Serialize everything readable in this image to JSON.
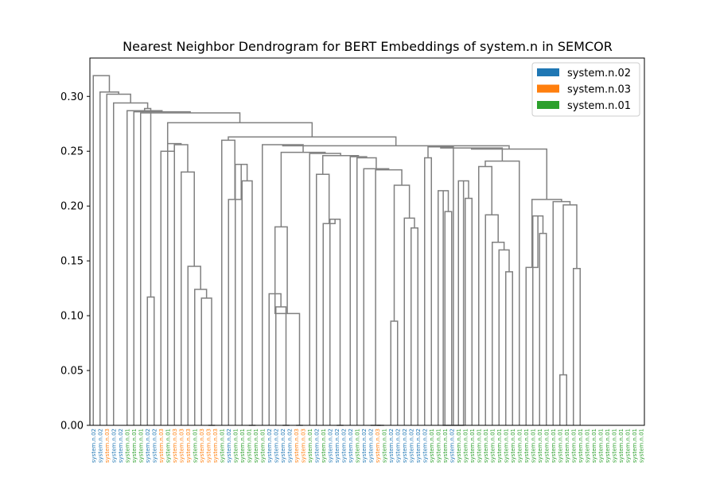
{
  "chart_data": {
    "type": "dendrogram",
    "title": "Nearest Neighbor Dendrogram for BERT Embeddings of system.n in SEMCOR",
    "xlabel": "",
    "ylabel": "",
    "ylim": [
      0,
      0.335
    ],
    "y_ticks": [
      {
        "value": 0.0,
        "label": "0.00"
      },
      {
        "value": 0.05,
        "label": "0.05"
      },
      {
        "value": 0.1,
        "label": "0.10"
      },
      {
        "value": 0.15,
        "label": "0.15"
      },
      {
        "value": 0.2,
        "label": "0.20"
      },
      {
        "value": 0.25,
        "label": "0.25"
      },
      {
        "value": 0.3,
        "label": "0.30"
      }
    ],
    "grid": false,
    "legend_position": "top-right",
    "legend": [
      {
        "label": "system.n.02",
        "color": "#1f77b4"
      },
      {
        "label": "system.n.03",
        "color": "#ff7f0e"
      },
      {
        "label": "system.n.01",
        "color": "#2ca02c"
      }
    ],
    "link_color": "#808080",
    "leaves": [
      "system.n.02",
      "system.n.02",
      "system.n.03",
      "system.n.02",
      "system.n.02",
      "system.n.01",
      "system.n.01",
      "system.n.01",
      "system.n.02",
      "system.n.02",
      "system.n.03",
      "system.n.01",
      "system.n.03",
      "system.n.03",
      "system.n.03",
      "system.n.01",
      "system.n.03",
      "system.n.03",
      "system.n.03",
      "system.n.01",
      "system.n.02",
      "system.n.01",
      "system.n.01",
      "system.n.01",
      "system.n.01",
      "system.n.01",
      "system.n.02",
      "system.n.02",
      "system.n.02",
      "system.n.02",
      "system.n.03",
      "system.n.03",
      "system.n.01",
      "system.n.02",
      "system.n.01",
      "system.n.02",
      "system.n.02",
      "system.n.02",
      "system.n.02",
      "system.n.01",
      "system.n.02",
      "system.n.02",
      "system.n.03",
      "system.n.01",
      "system.n.02",
      "system.n.02",
      "system.n.02",
      "system.n.02",
      "system.n.02",
      "system.n.02",
      "system.n.01",
      "system.n.01",
      "system.n.01",
      "system.n.02",
      "system.n.01",
      "system.n.01",
      "system.n.01",
      "system.n.01",
      "system.n.01",
      "system.n.01",
      "system.n.01",
      "system.n.01",
      "system.n.01",
      "system.n.01",
      "system.n.01",
      "system.n.01",
      "system.n.01",
      "system.n.01",
      "system.n.01",
      "system.n.01",
      "system.n.01",
      "system.n.01",
      "system.n.01",
      "system.n.01",
      "system.n.01",
      "system.n.01",
      "system.n.01",
      "system.n.01",
      "system.n.01",
      "system.n.01",
      "system.n.01",
      "system.n.01"
    ],
    "merges": [
      {
        "id": "m1",
        "a": 8,
        "b": 9,
        "h": 0.117
      },
      {
        "id": "m2",
        "a": 17,
        "b": 18,
        "h": 0.0
      },
      {
        "id": "m3",
        "a": 16,
        "b": "m2",
        "h": 0.116
      },
      {
        "id": "m4",
        "a": 15,
        "b": "m3",
        "h": 0.124
      },
      {
        "id": "m5",
        "a": 14,
        "b": "m4",
        "h": 0.145
      },
      {
        "id": "m6",
        "a": 13,
        "b": "m5",
        "h": 0.231
      },
      {
        "id": "m7",
        "a": 12,
        "b": "m6",
        "h": 0.256
      },
      {
        "id": "m8",
        "a": 11,
        "b": "m7",
        "h": 0.257
      },
      {
        "id": "m9",
        "a": 10,
        "b": "m8",
        "h": 0.25
      },
      {
        "id": "m10",
        "a": 23,
        "b": 24,
        "h": 0.0
      },
      {
        "id": "m11",
        "a": 22,
        "b": "m10",
        "h": 0.223
      },
      {
        "id": "m12",
        "a": 21,
        "b": "m11",
        "h": 0.238
      },
      {
        "id": "m13",
        "a": 20,
        "b": "m12",
        "h": 0.206
      },
      {
        "id": "m14",
        "a": 19,
        "b": "m13",
        "h": 0.26
      },
      {
        "id": "m15",
        "a": 28,
        "b": 29,
        "h": 0.0
      },
      {
        "id": "m16",
        "a": 27,
        "b": "m15",
        "h": 0.108
      },
      {
        "id": "m17",
        "a": 26,
        "b": "m16",
        "h": 0.12
      },
      {
        "id": "m18",
        "a": 30,
        "b": 31,
        "h": 0.0
      },
      {
        "id": "m19",
        "a": "m17",
        "b": "m18",
        "h": 0.102
      },
      {
        "id": "m20",
        "a": "m17",
        "b": "m19",
        "h": 0.181
      },
      {
        "id": "m21",
        "a": 36,
        "b": 37,
        "h": 0.0
      },
      {
        "id": "m22",
        "a": 35,
        "b": "m21",
        "h": 0.188
      },
      {
        "id": "m23",
        "a": 34,
        "b": "m22",
        "h": 0.184
      },
      {
        "id": "m24",
        "a": 33,
        "b": "m23",
        "h": 0.229
      },
      {
        "id": "m25",
        "a": 42,
        "b": 43,
        "h": 0.0
      },
      {
        "id": "m26",
        "a": 41,
        "b": "m25",
        "h": 0.0
      },
      {
        "id": "m27",
        "a": 47,
        "b": 48,
        "h": 0.18
      },
      {
        "id": "m28",
        "a": 46,
        "b": "m27",
        "h": 0.189
      },
      {
        "id": "m29",
        "a": 44,
        "b": 45,
        "h": 0.095
      },
      {
        "id": "m30",
        "a": "m29",
        "b": "m28",
        "h": 0.219
      },
      {
        "id": "m31",
        "a": "m26",
        "b": "m30",
        "h": 0.233
      },
      {
        "id": "m32",
        "a": 40,
        "b": "m31",
        "h": 0.234
      },
      {
        "id": "m33",
        "a": 39,
        "b": "m32",
        "h": 0.244
      },
      {
        "id": "m34",
        "a": 38,
        "b": "m33",
        "h": 0.245
      },
      {
        "id": "m35",
        "a": "m24",
        "b": "m34",
        "h": 0.246
      },
      {
        "id": "m36",
        "a": 32,
        "b": "m35",
        "h": 0.248
      },
      {
        "id": "m37",
        "a": "m20",
        "b": "m36",
        "h": 0.249
      },
      {
        "id": "m38",
        "a": 25,
        "b": "m37",
        "h": 0.256
      },
      {
        "id": "m39",
        "a": 52,
        "b": 53,
        "h": 0.195
      },
      {
        "id": "m40",
        "a": 51,
        "b": "m39",
        "h": 0.214
      },
      {
        "id": "m41",
        "a": 55,
        "b": 56,
        "h": 0.207
      },
      {
        "id": "m42",
        "a": 54,
        "b": "m41",
        "h": 0.223
      },
      {
        "id": "m43",
        "a": "m40",
        "b": "m42",
        "h": 0.0
      },
      {
        "id": "m44",
        "a": 49,
        "b": 50,
        "h": 0.244
      },
      {
        "id": "m45",
        "a": "m44",
        "b": "m43",
        "h": 0.254
      },
      {
        "id": "m46",
        "a": 61,
        "b": 62,
        "h": 0.14
      },
      {
        "id": "m47",
        "a": 60,
        "b": "m46",
        "h": 0.16
      },
      {
        "id": "m48",
        "a": 59,
        "b": "m47",
        "h": 0.167
      },
      {
        "id": "m49",
        "a": 58,
        "b": "m48",
        "h": 0.192
      },
      {
        "id": "m50",
        "a": 57,
        "b": "m49",
        "h": 0.236
      },
      {
        "id": "m51",
        "a": 63,
        "b": "m50",
        "h": 0.241
      },
      {
        "id": "m52",
        "a": "m45",
        "b": "m51",
        "h": 0.253
      },
      {
        "id": "m53",
        "a": 66,
        "b": 67,
        "h": 0.175
      },
      {
        "id": "m54",
        "a": 65,
        "b": "m53",
        "h": 0.191
      },
      {
        "id": "m55",
        "a": 64,
        "b": "m54",
        "h": 0.144
      },
      {
        "id": "m56",
        "a": 69,
        "b": 70,
        "h": 0.046
      },
      {
        "id": "m57",
        "a": 71,
        "b": 72,
        "h": 0.143
      },
      {
        "id": "m58",
        "a": "m56",
        "b": "m57",
        "h": 0.201
      },
      {
        "id": "m59",
        "a": 68,
        "b": "m58",
        "h": 0.204
      },
      {
        "id": "m60",
        "a": "m55",
        "b": "m59",
        "h": 0.206
      },
      {
        "id": "m61",
        "a": "m60",
        "b": "m60",
        "h": 0.24
      },
      {
        "id": "m62",
        "a": "m52",
        "b": "m61",
        "h": 0.252
      },
      {
        "id": "m63",
        "a": "m38",
        "b": "m62",
        "h": 0.255
      },
      {
        "id": "m64",
        "a": "m14",
        "b": "m63",
        "h": 0.263
      },
      {
        "id": "m65",
        "a": "m9",
        "b": "m64",
        "h": 0.276
      },
      {
        "id": "m66",
        "a": 7,
        "b": "m65",
        "h": 0.285
      },
      {
        "id": "m67",
        "a": 6,
        "b": "m66",
        "h": 0.286
      },
      {
        "id": "m68",
        "a": 5,
        "b": "m67",
        "h": 0.287
      },
      {
        "id": "m69",
        "a": "m1",
        "b": "m68",
        "h": 0.289
      },
      {
        "id": "m70",
        "a": 3,
        "b": "m69",
        "h": 0.294
      },
      {
        "id": "m71",
        "a": 2,
        "b": "m70",
        "h": 0.302
      },
      {
        "id": "m72",
        "a": 1,
        "b": "m71",
        "h": 0.304
      },
      {
        "id": "m73",
        "a": 0,
        "b": "m72",
        "h": 0.319
      }
    ]
  }
}
